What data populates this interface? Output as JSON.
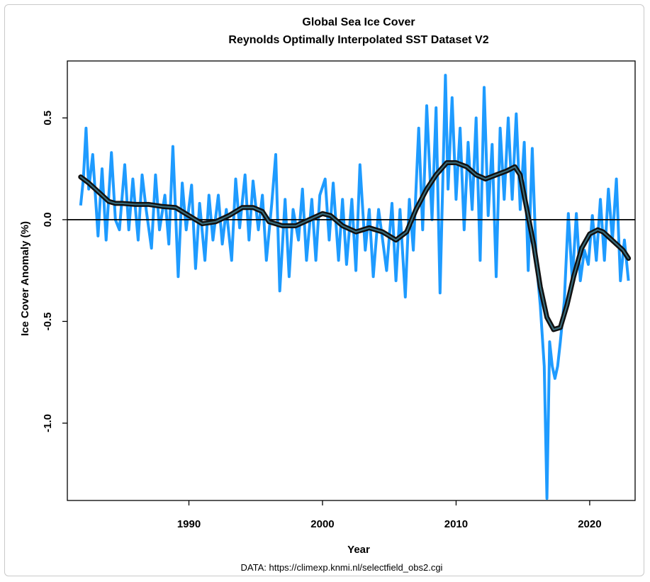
{
  "chart_data": {
    "type": "line",
    "title": "Global Sea Ice Cover",
    "subtitle": "Reynolds Optimally Interpolated SST Dataset V2",
    "xlabel": "Year",
    "ylabel": "Ice Cover Anomaly (%)",
    "source": "DATA: https://climexp.knmi.nl/selectfield_obs2.cgi",
    "xlim": [
      1980.9,
      2023.4
    ],
    "ylim": [
      -1.38,
      0.78
    ],
    "x_ticks": [
      1990,
      2000,
      2010,
      2020
    ],
    "x_tick_labels": [
      "1990",
      "2000",
      "2010",
      "2020"
    ],
    "y_ticks": [
      0.5,
      0.0,
      -0.5,
      -1.0
    ],
    "y_tick_labels": [
      "0.5",
      "0.0",
      "-0.5",
      "-1.0"
    ],
    "grid": false,
    "zero_line": true,
    "series": [
      {
        "role": "monthly",
        "color": "#1e9bff",
        "x": [
          1981.9,
          1982.1,
          1982.3,
          1982.5,
          1982.8,
          1983.2,
          1983.5,
          1983.8,
          1984.2,
          1984.5,
          1984.8,
          1985.2,
          1985.5,
          1985.8,
          1986.2,
          1986.5,
          1986.8,
          1987.2,
          1987.5,
          1987.8,
          1988.2,
          1988.5,
          1988.8,
          1989.2,
          1989.5,
          1989.8,
          1990.2,
          1990.5,
          1990.8,
          1991.2,
          1991.5,
          1991.8,
          1992.2,
          1992.5,
          1992.8,
          1993.2,
          1993.5,
          1993.8,
          1994.2,
          1994.5,
          1994.8,
          1995.2,
          1995.5,
          1995.8,
          1996.2,
          1996.5,
          1996.8,
          1997.2,
          1997.5,
          1997.8,
          1998.2,
          1998.5,
          1998.8,
          1999.2,
          1999.5,
          1999.8,
          2000.2,
          2000.5,
          2000.8,
          2001.2,
          2001.5,
          2001.8,
          2002.2,
          2002.5,
          2002.8,
          2003.2,
          2003.5,
          2003.8,
          2004.2,
          2004.5,
          2004.8,
          2005.2,
          2005.5,
          2005.8,
          2006.2,
          2006.5,
          2006.8,
          2007.2,
          2007.5,
          2007.8,
          2008.2,
          2008.5,
          2008.8,
          2009.2,
          2009.4,
          2009.7,
          2010.0,
          2010.3,
          2010.6,
          2010.9,
          2011.2,
          2011.5,
          2011.8,
          2012.1,
          2012.4,
          2012.7,
          2013.0,
          2013.3,
          2013.6,
          2013.9,
          2014.2,
          2014.5,
          2014.8,
          2015.1,
          2015.4,
          2015.7,
          2016.0,
          2016.3,
          2016.6,
          2016.8,
          2017.0,
          2017.2,
          2017.4,
          2017.6,
          2017.8,
          2018.1,
          2018.4,
          2018.7,
          2019.0,
          2019.3,
          2019.6,
          2019.9,
          2020.2,
          2020.5,
          2020.8,
          2021.1,
          2021.4,
          2021.7,
          2022.0,
          2022.3,
          2022.6,
          2022.9
        ],
        "values": [
          0.07,
          0.2,
          0.45,
          0.15,
          0.32,
          -0.08,
          0.25,
          -0.1,
          0.33,
          0.0,
          -0.05,
          0.27,
          -0.05,
          0.2,
          -0.1,
          0.22,
          0.05,
          -0.14,
          0.22,
          -0.05,
          0.12,
          -0.12,
          0.36,
          -0.28,
          0.18,
          -0.05,
          0.17,
          -0.24,
          0.08,
          -0.2,
          0.12,
          -0.1,
          0.12,
          -0.12,
          0.05,
          -0.2,
          0.2,
          -0.04,
          0.22,
          -0.1,
          0.19,
          -0.05,
          0.12,
          -0.2,
          0.08,
          0.32,
          -0.35,
          0.1,
          -0.28,
          0.05,
          -0.1,
          0.15,
          -0.2,
          0.1,
          -0.2,
          0.12,
          0.2,
          -0.1,
          0.18,
          -0.2,
          0.1,
          -0.22,
          0.1,
          -0.25,
          0.27,
          -0.15,
          0.05,
          -0.28,
          0.05,
          -0.1,
          -0.25,
          0.08,
          -0.3,
          0.05,
          -0.38,
          0.1,
          -0.15,
          0.45,
          -0.05,
          0.56,
          0.0,
          0.55,
          -0.36,
          0.71,
          0.15,
          0.6,
          0.1,
          0.45,
          -0.05,
          0.38,
          0.05,
          0.5,
          -0.2,
          0.65,
          0.02,
          0.37,
          -0.28,
          0.45,
          0.1,
          0.5,
          0.1,
          0.52,
          0.05,
          0.38,
          -0.25,
          0.35,
          -0.2,
          -0.42,
          -0.72,
          -1.37,
          -0.6,
          -0.72,
          -0.78,
          -0.72,
          -0.6,
          -0.4,
          0.03,
          -0.3,
          0.03,
          -0.3,
          -0.15,
          -0.22,
          0.02,
          -0.2,
          0.1,
          -0.2,
          0.15,
          -0.1,
          0.2,
          -0.3,
          -0.1,
          -0.3
        ],
        "width": 4
      },
      {
        "role": "smoothed",
        "color": "#111111",
        "x": [
          1981.9,
          1982.5,
          1983.0,
          1983.5,
          1984.0,
          1984.5,
          1985.0,
          1986.0,
          1987.0,
          1988.0,
          1989.0,
          1990.0,
          1990.5,
          1991.0,
          1992.0,
          1993.0,
          1994.0,
          1994.8,
          1995.5,
          1996.0,
          1997.0,
          1998.0,
          1999.0,
          2000.0,
          2000.6,
          2001.5,
          2002.5,
          2003.5,
          2004.5,
          2005.5,
          2006.3,
          2007.0,
          2007.8,
          2008.5,
          2009.3,
          2010.0,
          2010.8,
          2011.5,
          2012.2,
          2013.0,
          2013.8,
          2014.4,
          2014.8,
          2015.3,
          2015.8,
          2016.3,
          2016.8,
          2017.3,
          2017.8,
          2018.3,
          2018.8,
          2019.4,
          2020.0,
          2020.6,
          2021.0,
          2021.5,
          2022.0,
          2022.5,
          2022.9
        ],
        "values": [
          0.21,
          0.18,
          0.15,
          0.12,
          0.09,
          0.08,
          0.08,
          0.075,
          0.075,
          0.065,
          0.06,
          0.02,
          0.0,
          -0.02,
          -0.01,
          0.02,
          0.06,
          0.06,
          0.04,
          -0.01,
          -0.03,
          -0.03,
          0.0,
          0.03,
          0.02,
          -0.03,
          -0.06,
          -0.04,
          -0.06,
          -0.1,
          -0.06,
          0.05,
          0.15,
          0.22,
          0.28,
          0.28,
          0.26,
          0.22,
          0.2,
          0.22,
          0.24,
          0.26,
          0.22,
          0.05,
          -0.12,
          -0.33,
          -0.48,
          -0.54,
          -0.53,
          -0.42,
          -0.28,
          -0.14,
          -0.07,
          -0.05,
          -0.06,
          -0.09,
          -0.12,
          -0.15,
          -0.19
        ],
        "width": 4
      }
    ]
  }
}
